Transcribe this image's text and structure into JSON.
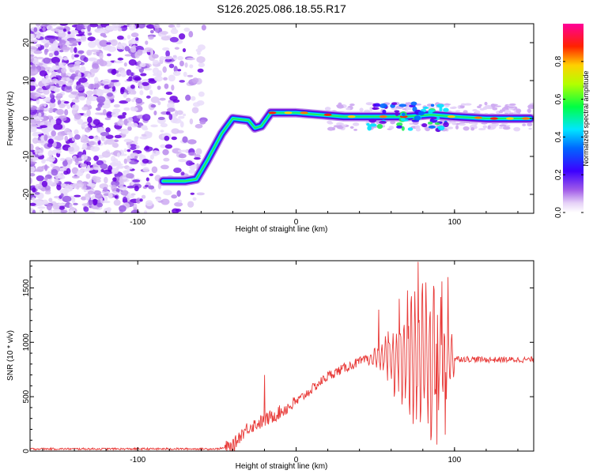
{
  "figure": {
    "title": "S126.2025.086.18.55.R17"
  },
  "chart_data": [
    {
      "type": "heatmap",
      "title": "S126.2025.086.18.55.R17",
      "xlabel": "Height of straight line (km)",
      "ylabel": "Frequency (Hz)",
      "xlim": [
        -168,
        150
      ],
      "ylim": [
        -25,
        25
      ],
      "xticks": [
        -100,
        0,
        100
      ],
      "yticks": [
        -20,
        -10,
        0,
        10,
        20
      ],
      "colorbar": {
        "label": "Normalized spectral amplitude",
        "range": [
          0,
          1
        ],
        "ticks": [
          "0.0",
          "0.2",
          "0.4",
          "0.6",
          "0.8"
        ],
        "colormap": "white-lavender-purple-blue-cyan-green-yellow-red-magenta"
      },
      "ridge": [
        {
          "x": -84,
          "y": -16.5
        },
        {
          "x": -70,
          "y": -16.5
        },
        {
          "x": -63,
          "y": -16.0
        },
        {
          "x": -56,
          "y": -11.0
        },
        {
          "x": -47,
          "y": -4.0
        },
        {
          "x": -40,
          "y": 0.0
        },
        {
          "x": -30,
          "y": -0.5
        },
        {
          "x": -26,
          "y": -2.5
        },
        {
          "x": -22,
          "y": -2.0
        },
        {
          "x": -16,
          "y": 1.5
        },
        {
          "x": 0,
          "y": 1.5
        },
        {
          "x": 15,
          "y": 1.0
        },
        {
          "x": 30,
          "y": 0.5
        },
        {
          "x": 50,
          "y": 0.5
        },
        {
          "x": 70,
          "y": 0.5
        },
        {
          "x": 85,
          "y": 1.0
        },
        {
          "x": 100,
          "y": 0.5
        },
        {
          "x": 120,
          "y": 0.0
        },
        {
          "x": 148,
          "y": 0.0
        }
      ]
    },
    {
      "type": "line",
      "xlabel": "Height of straight line (km)",
      "ylabel": "SNR (10 * v/v)",
      "xlim": [
        -168,
        150
      ],
      "ylim": [
        0,
        1750
      ],
      "xticks": [
        -100,
        0,
        100
      ],
      "yticks": [
        0,
        500,
        1000,
        1500
      ],
      "color": "#e83a38",
      "envelope": [
        {
          "x": -168,
          "y": 20
        },
        {
          "x": -50,
          "y": 20
        },
        {
          "x": -40,
          "y": 40
        },
        {
          "x": -35,
          "y": 150
        },
        {
          "x": -30,
          "y": 220
        },
        {
          "x": -20,
          "y": 280
        },
        {
          "x": -10,
          "y": 360
        },
        {
          "x": 0,
          "y": 450
        },
        {
          "x": 10,
          "y": 570
        },
        {
          "x": 20,
          "y": 690
        },
        {
          "x": 30,
          "y": 760
        },
        {
          "x": 40,
          "y": 820
        },
        {
          "x": 50,
          "y": 860
        },
        {
          "x": 60,
          "y": 860
        },
        {
          "x": 70,
          "y": 860
        },
        {
          "x": 80,
          "y": 860
        },
        {
          "x": 90,
          "y": 850
        },
        {
          "x": 100,
          "y": 850
        },
        {
          "x": 120,
          "y": 840
        },
        {
          "x": 150,
          "y": 840
        }
      ],
      "peaks": [
        {
          "x": -20,
          "y": 700
        },
        {
          "x": 52,
          "y": 1300
        },
        {
          "x": 58,
          "y": 1100
        },
        {
          "x": 65,
          "y": 1400
        },
        {
          "x": 71,
          "y": 1150
        },
        {
          "x": 77,
          "y": 1740
        },
        {
          "x": 82,
          "y": 1550
        },
        {
          "x": 87,
          "y": 1480
        },
        {
          "x": 92,
          "y": 1560
        },
        {
          "x": 96,
          "y": 1600
        }
      ],
      "troughs": [
        {
          "x": 62,
          "y": 500
        },
        {
          "x": 74,
          "y": 250
        },
        {
          "x": 85,
          "y": 100
        },
        {
          "x": 89,
          "y": 60
        },
        {
          "x": 94,
          "y": 150
        }
      ]
    }
  ]
}
